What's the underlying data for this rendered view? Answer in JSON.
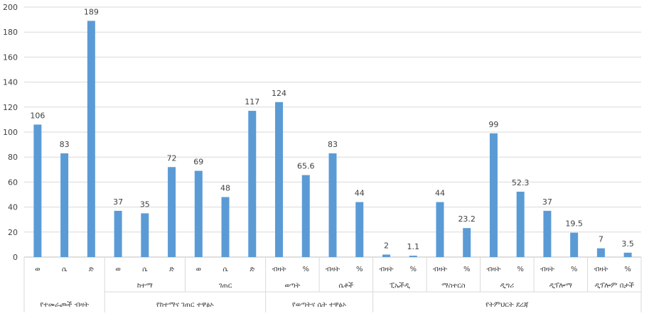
{
  "chart_data": {
    "type": "bar",
    "title": "",
    "xlabel": "",
    "ylabel": "",
    "ylim": [
      0,
      200
    ],
    "yticks": [
      0,
      20,
      40,
      60,
      80,
      100,
      120,
      140,
      160,
      180,
      200
    ],
    "grid": true,
    "bar_color": "#5B9BD5",
    "categories": [
      "ወ",
      "ሴ",
      "ድ",
      "ወ",
      "ሴ",
      "ድ",
      "ወ",
      "ሴ",
      "ድ",
      "ብዛት",
      "%",
      "ብዛት",
      "%",
      "ብዛት",
      "%",
      "ብዛት",
      "%",
      "ብዛት",
      "%",
      "ብዛት",
      "%",
      "ብዛት",
      "%"
    ],
    "values": [
      106,
      83,
      189,
      37,
      35,
      72,
      69,
      48,
      117,
      124,
      65.6,
      83,
      44,
      2,
      1.1,
      44,
      23.2,
      99,
      52.3,
      37,
      19.5,
      7,
      3.5
    ],
    "data_labels": [
      "106",
      "83",
      "189",
      "37",
      "35",
      "72",
      "69",
      "48",
      "117",
      "124",
      "65.6",
      "83",
      "44",
      "2",
      "1.1",
      "44",
      "23.2",
      "99",
      "52.3",
      "37",
      "19.5",
      "7",
      "3.5"
    ],
    "groups_level1": [
      {
        "label": "የተመራጮች ብዛት",
        "start": 0,
        "end": 2
      },
      {
        "label": "ከተማ",
        "start": 3,
        "end": 5
      },
      {
        "label": "ገጠር",
        "start": 6,
        "end": 8
      },
      {
        "label": "ወጣት",
        "start": 9,
        "end": 10
      },
      {
        "label": "ሴቶች",
        "start": 11,
        "end": 12
      },
      {
        "label": "ፒኤችዲ",
        "start": 13,
        "end": 14
      },
      {
        "label": "ማስተርስ",
        "start": 15,
        "end": 16
      },
      {
        "label": "ዲግሪ",
        "start": 17,
        "end": 18
      },
      {
        "label": "ዲፕሎማ",
        "start": 19,
        "end": 20
      },
      {
        "label": "ዲፕሎም በታች",
        "start": 21,
        "end": 22
      }
    ],
    "groups_level2": [
      {
        "label": "የተመራጮች ብዛት",
        "start": 0,
        "end": 2
      },
      {
        "label": "የከተማና ገጠር ተዋፅኦ",
        "start": 3,
        "end": 8
      },
      {
        "label": "የወጣትና ሴት ተዋፅኦ",
        "start": 9,
        "end": 12
      },
      {
        "label": "የትምህርት ደረጃ",
        "start": 13,
        "end": 22
      }
    ]
  }
}
